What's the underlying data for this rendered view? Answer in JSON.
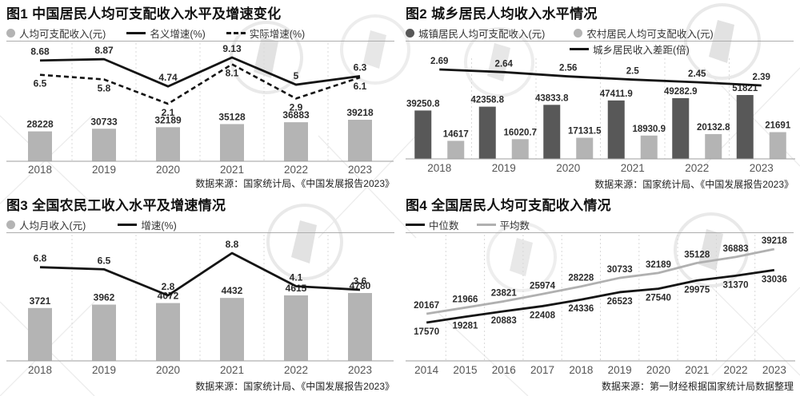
{
  "colors": {
    "light_gray": "#b4b4b4",
    "dark_gray": "#585858",
    "black": "#141414",
    "gray": "#b0b0b0",
    "axis": "#9e9e9e",
    "separator": "#d8d8d8",
    "value_label": "#2b2b2b",
    "tick_label": "#555555",
    "watermark": "#e9e9e9"
  },
  "chart_data": [
    {
      "id": "fig1",
      "type": "bar+line combo",
      "title": "图1 中国居民人均可支配收入水平及增速变化",
      "categories": [
        "2018",
        "2019",
        "2020",
        "2021",
        "2022",
        "2023"
      ],
      "bar_series": [
        {
          "name": "人均可支配收入(元)",
          "color": "light_gray",
          "values": [
            28228,
            30733,
            32189,
            35128,
            36883,
            39218
          ]
        }
      ],
      "line_series": [
        {
          "name": "名义增速(%)",
          "color": "black",
          "dash": "solid",
          "label_pos": "above",
          "values": [
            8.68,
            8.87,
            4.74,
            9.13,
            5,
            6.3
          ]
        },
        {
          "name": "实际增速(%)",
          "color": "black",
          "dash": "dashed",
          "label_pos": "below",
          "values": [
            6.5,
            5.8,
            2.1,
            8.1,
            2.9,
            6.1
          ]
        }
      ],
      "legend": [
        {
          "swatch": "dot",
          "color": "light_gray",
          "label": "人均可支配收入(元)"
        },
        {
          "swatch": "line",
          "color": "black",
          "dash": "solid",
          "label": "名义增速(%)"
        },
        {
          "swatch": "line",
          "color": "black",
          "dash": "dashed",
          "label": "实际增速(%)"
        }
      ],
      "source": "数据来源：国家统计局、《中国发展报告2023》"
    },
    {
      "id": "fig2",
      "type": "grouped bar + line combo",
      "title": "图2 城乡居民人均收入水平情况",
      "categories": [
        "2018",
        "2019",
        "2020",
        "2021",
        "2022",
        "2023"
      ],
      "bar_series": [
        {
          "name": "城镇居民人均可支配收入(元)",
          "color": "dark_gray",
          "values": [
            39250.8,
            42358.8,
            43833.8,
            47411.9,
            49282.9,
            51821
          ]
        },
        {
          "name": "农村居民人均可支配收入(元)",
          "color": "light_gray",
          "values": [
            14617,
            16020.7,
            17131.5,
            18930.9,
            20132.8,
            21691
          ]
        }
      ],
      "line_series": [
        {
          "name": "城乡居民收入差距(倍)",
          "color": "black",
          "dash": "solid",
          "label_pos": "above",
          "values": [
            2.69,
            2.64,
            2.56,
            2.5,
            2.45,
            2.39
          ]
        }
      ],
      "legend": [
        {
          "swatch": "dot",
          "color": "dark_gray",
          "label": "城镇居民人均可支配收入(元)"
        },
        {
          "swatch": "dot",
          "color": "light_gray",
          "label": "农村居民人均可支配收入(元)"
        },
        {
          "swatch": "line",
          "color": "black",
          "dash": "solid",
          "label": "城乡居民收入差距(倍)"
        }
      ],
      "source": "数据来源：国家统计局、《中国发展报告2023》"
    },
    {
      "id": "fig3",
      "type": "bar+line combo",
      "title": "图3 全国农民工收入水平及增速情况",
      "categories": [
        "2018",
        "2019",
        "2020",
        "2021",
        "2022",
        "2023"
      ],
      "bar_series": [
        {
          "name": "人均月收入(元)",
          "color": "light_gray",
          "values": [
            3721,
            3962,
            4072,
            4432,
            4615,
            4780
          ]
        }
      ],
      "line_series": [
        {
          "name": "增速(%)",
          "color": "black",
          "dash": "solid",
          "label_pos": "above",
          "values": [
            6.8,
            6.5,
            2.8,
            8.8,
            4.1,
            3.6
          ]
        }
      ],
      "legend": [
        {
          "swatch": "dot",
          "color": "light_gray",
          "label": "人均月收入(元)"
        },
        {
          "swatch": "line",
          "color": "black",
          "dash": "solid",
          "label": "增速(%)"
        }
      ],
      "source": "数据来源：国家统计局、《中国发展报告2023》"
    },
    {
      "id": "fig4",
      "type": "line",
      "title": "图4 全国居民人均可支配收入情况",
      "categories": [
        "2014",
        "2015",
        "2016",
        "2017",
        "2018",
        "2019",
        "2020",
        "2021",
        "2022",
        "2023"
      ],
      "bar_series": [],
      "line_series": [
        {
          "name": "平均数",
          "color": "gray",
          "dash": "solid",
          "label_pos": "above",
          "values": [
            20167,
            21966,
            23821,
            25974,
            28228,
            30733,
            32189,
            35128,
            36883,
            39218
          ]
        },
        {
          "name": "中位数",
          "color": "black",
          "dash": "solid",
          "label_pos": "below",
          "values": [
            17570,
            19281,
            20883,
            22408,
            24336,
            26523,
            27540,
            29975,
            31370,
            33036
          ]
        }
      ],
      "legend": [
        {
          "swatch": "line",
          "color": "black",
          "dash": "solid",
          "label": "中位数"
        },
        {
          "swatch": "line",
          "color": "gray",
          "dash": "solid",
          "label": "平均数"
        }
      ],
      "source": "数据来源：第一财经根据国家统计局数据整理"
    }
  ]
}
